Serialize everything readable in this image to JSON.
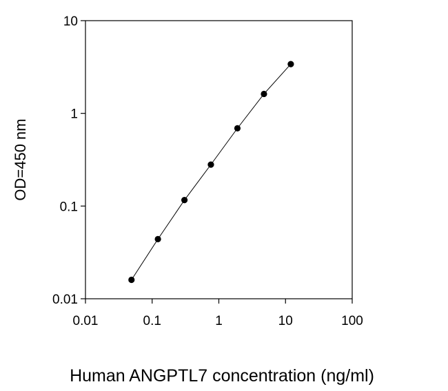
{
  "chart_data": {
    "type": "scatter",
    "title": "",
    "xlabel": "Human ANGPTL7 concentration (ng/ml)",
    "ylabel": "OD=450 nm",
    "x_scale": "log",
    "y_scale": "log",
    "xlim": [
      0.01,
      100
    ],
    "ylim": [
      0.01,
      10
    ],
    "x_ticks": [
      "0.01",
      "0.1",
      "1",
      "10",
      "100"
    ],
    "y_ticks": [
      "0.01",
      "0.1",
      "1",
      "10"
    ],
    "grid": false,
    "legend": "none",
    "series": [
      {
        "x": [
          0.049,
          0.122,
          0.305,
          0.76,
          1.9,
          4.75,
          12.0
        ],
        "y": [
          0.016,
          0.044,
          0.116,
          0.28,
          0.69,
          1.62,
          3.4
        ],
        "marker": "circle",
        "line": "connected"
      }
    ],
    "colors": {
      "marker": "#000000",
      "line": "#000000",
      "axis": "#000000"
    }
  }
}
